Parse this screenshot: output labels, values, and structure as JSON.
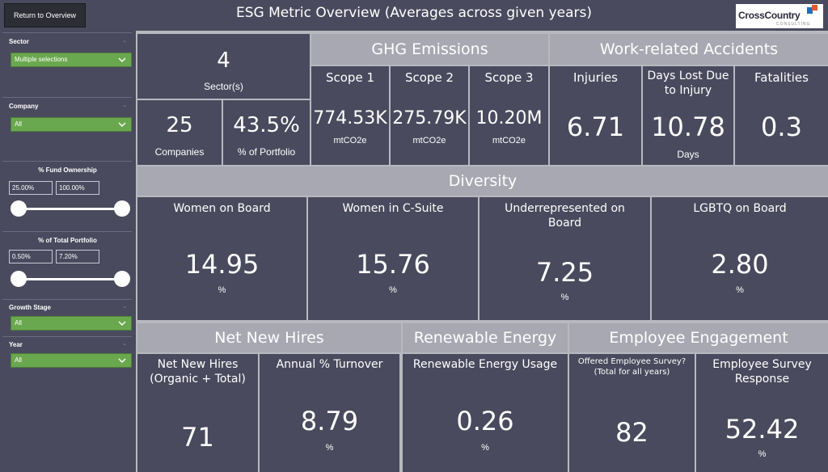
{
  "header": {
    "return_button": "Return to Overview",
    "title": "ESG Metric Overview (Averages across given years)",
    "logo_text": "CrossCountry",
    "logo_sub": "CONSULTING"
  },
  "filters": {
    "sector": {
      "label": "Sector",
      "value": "Multiple selections"
    },
    "company": {
      "label": "Company",
      "value": "All"
    },
    "fund_ownership": {
      "label": "% Fund Ownership",
      "min": "25.00%",
      "max": "100.00%"
    },
    "total_portfolio": {
      "label": "% of Total Portfolio",
      "min": "0.50%",
      "max": "7.20%"
    },
    "growth_stage": {
      "label": "Growth Stage",
      "value": "All"
    },
    "year": {
      "label": "Year",
      "value": "All"
    }
  },
  "overview": {
    "sectors": {
      "value": "4",
      "label": "Sector(s)"
    },
    "companies": {
      "value": "25",
      "label": "Companies"
    },
    "portfolio": {
      "value": "43.5%",
      "label": "% of Portfolio"
    }
  },
  "ghg": {
    "header": "GHG Emissions",
    "scope1": {
      "title": "Scope 1",
      "value": "774.53K",
      "unit": "mtCO2e"
    },
    "scope2": {
      "title": "Scope 2",
      "value": "275.79K",
      "unit": "mtCO2e"
    },
    "scope3": {
      "title": "Scope 3",
      "value": "10.20M",
      "unit": "mtCO2e"
    }
  },
  "accidents": {
    "header": "Work-related Accidents",
    "injuries": {
      "title": "Injuries",
      "value": "6.71"
    },
    "days_lost": {
      "title": "Days Lost Due to Injury",
      "value": "10.78",
      "unit": "Days"
    },
    "fatalities": {
      "title": "Fatalities",
      "value": "0.3"
    }
  },
  "diversity": {
    "header": "Diversity",
    "women_board": {
      "title": "Women on Board",
      "value": "14.95",
      "unit": "%"
    },
    "women_csuite": {
      "title": "Women in C-Suite",
      "value": "15.76",
      "unit": "%"
    },
    "underrep_board": {
      "title": "Underrepresented on Board",
      "value": "7.25",
      "unit": "%"
    },
    "lgbtq_board": {
      "title": "LGBTQ on Board",
      "value": "2.80",
      "unit": "%"
    }
  },
  "hires": {
    "header": "Net New Hires",
    "net_new": {
      "title": "Net New Hires (Organic + Total)",
      "value": "71"
    },
    "turnover": {
      "title": "Annual % Turnover",
      "value": "8.79",
      "unit": "%"
    }
  },
  "renewable": {
    "header": "Renewable Energy",
    "usage": {
      "title": "Renewable Energy Usage",
      "value": "0.26",
      "unit": "%"
    }
  },
  "engagement": {
    "header": "Employee Engagement",
    "offered": {
      "title": "Offered Employee Survey? (Total for all years)",
      "value": "82"
    },
    "response": {
      "title": "Employee Survey Response",
      "value": "52.42",
      "unit": "%"
    }
  }
}
